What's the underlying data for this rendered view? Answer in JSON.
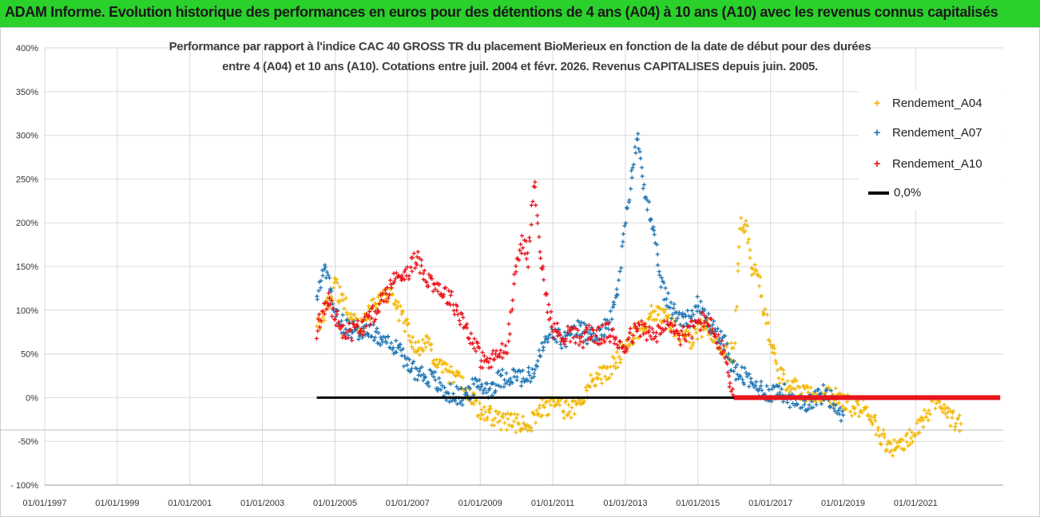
{
  "banner": {
    "title": "ADAM Informe. Evolution historique des performances en euros pour des détentions de 4 ans (A04) à 10 ans (A10) avec les revenus connus capitalisés"
  },
  "colors": {
    "banner_bg": "#2bd12b",
    "A04": "#f2b705",
    "A07": "#1f77b4",
    "A10": "#e8141c",
    "zero": "#000000",
    "grid": "#d9d9d9"
  },
  "chart_data": {
    "type": "scatter",
    "title_line1": "Performance par rapport à l'indice CAC 40 GROSS TR  du placement BioMerieux en fonction de la date de début pour des durées",
    "title_line2": "entre 4 (A04) et 10 ans (A10). Cotations entre juil. 2004 et févr. 2026. Revenus CAPITALISES depuis juin. 2005.",
    "xlabel": "",
    "ylabel": "",
    "x_ticks": [
      "01/01/1997",
      "01/01/1999",
      "01/01/2001",
      "01/01/2003",
      "01/01/2005",
      "01/01/2007",
      "01/01/2009",
      "01/01/2011",
      "01/01/2013",
      "01/01/2015",
      "01/01/2017",
      "01/01/2019",
      "01/01/2021"
    ],
    "xlim": [
      "1997-01-01",
      "2023-06-01"
    ],
    "y_ticks": [
      "- 100%",
      "-50%",
      "0%",
      "50%",
      "100%",
      "150%",
      "200%",
      "250%",
      "300%",
      "350%",
      "400%"
    ],
    "ylim": [
      -100,
      400
    ],
    "grid": true,
    "legend_position": "top-right",
    "series": [
      {
        "name": "Rendement_A04",
        "marker": "+",
        "points": [
          [
            "2004-07-01",
            80
          ],
          [
            "2004-09-01",
            95
          ],
          [
            "2004-11-01",
            110
          ],
          [
            "2005-01-01",
            130
          ],
          [
            "2005-03-01",
            115
          ],
          [
            "2005-06-01",
            95
          ],
          [
            "2005-09-01",
            80
          ],
          [
            "2006-01-01",
            100
          ],
          [
            "2006-04-01",
            115
          ],
          [
            "2006-07-01",
            120
          ],
          [
            "2006-10-01",
            100
          ],
          [
            "2007-01-01",
            80
          ],
          [
            "2007-04-01",
            55
          ],
          [
            "2007-07-01",
            65
          ],
          [
            "2007-10-01",
            45
          ],
          [
            "2008-01-01",
            30
          ],
          [
            "2008-04-01",
            25
          ],
          [
            "2008-07-01",
            15
          ],
          [
            "2008-10-01",
            0
          ],
          [
            "2009-01-01",
            -15
          ],
          [
            "2009-04-01",
            -20
          ],
          [
            "2009-07-01",
            -25
          ],
          [
            "2009-10-01",
            -28
          ],
          [
            "2010-01-01",
            -30
          ],
          [
            "2010-04-01",
            -32
          ],
          [
            "2010-07-01",
            -25
          ],
          [
            "2010-10-01",
            -10
          ],
          [
            "2011-01-01",
            -10
          ],
          [
            "2011-04-01",
            -12
          ],
          [
            "2011-07-01",
            -15
          ],
          [
            "2011-10-01",
            -5
          ],
          [
            "2012-01-01",
            15
          ],
          [
            "2012-04-01",
            25
          ],
          [
            "2012-07-01",
            30
          ],
          [
            "2012-10-01",
            40
          ],
          [
            "2013-01-01",
            55
          ],
          [
            "2013-04-01",
            70
          ],
          [
            "2013-07-01",
            85
          ],
          [
            "2013-10-01",
            100
          ],
          [
            "2014-01-01",
            95
          ],
          [
            "2014-04-01",
            85
          ],
          [
            "2014-07-01",
            75
          ],
          [
            "2014-10-01",
            65
          ],
          [
            "2015-01-01",
            75
          ],
          [
            "2015-04-01",
            85
          ],
          [
            "2015-07-01",
            70
          ],
          [
            "2015-10-01",
            55
          ],
          [
            "2016-01-01",
            50
          ],
          [
            "2016-03-01",
            200
          ],
          [
            "2016-05-01",
            195
          ],
          [
            "2016-07-01",
            150
          ],
          [
            "2016-09-01",
            140
          ],
          [
            "2016-11-01",
            95
          ],
          [
            "2017-01-01",
            70
          ],
          [
            "2017-04-01",
            25
          ],
          [
            "2017-07-01",
            15
          ],
          [
            "2017-10-01",
            10
          ],
          [
            "2018-01-01",
            5
          ],
          [
            "2018-04-01",
            5
          ],
          [
            "2018-07-01",
            0
          ],
          [
            "2018-10-01",
            2
          ],
          [
            "2019-01-01",
            -5
          ],
          [
            "2019-04-01",
            -10
          ],
          [
            "2019-07-01",
            -12
          ],
          [
            "2019-10-01",
            -15
          ],
          [
            "2020-01-01",
            -40
          ],
          [
            "2020-04-01",
            -58
          ],
          [
            "2020-07-01",
            -55
          ],
          [
            "2020-10-01",
            -50
          ],
          [
            "2021-01-01",
            -40
          ],
          [
            "2021-04-01",
            -25
          ],
          [
            "2021-07-01",
            0
          ],
          [
            "2021-10-01",
            -10
          ],
          [
            "2022-01-01",
            -25
          ],
          [
            "2022-04-01",
            -30
          ]
        ]
      },
      {
        "name": "Rendement_A07",
        "marker": "+",
        "points": [
          [
            "2004-07-01",
            110
          ],
          [
            "2004-09-01",
            150
          ],
          [
            "2004-11-01",
            130
          ],
          [
            "2005-01-01",
            100
          ],
          [
            "2005-03-01",
            85
          ],
          [
            "2005-06-01",
            80
          ],
          [
            "2005-09-01",
            75
          ],
          [
            "2006-01-01",
            75
          ],
          [
            "2006-04-01",
            70
          ],
          [
            "2006-07-01",
            65
          ],
          [
            "2006-10-01",
            55
          ],
          [
            "2007-01-01",
            40
          ],
          [
            "2007-04-01",
            30
          ],
          [
            "2007-07-01",
            25
          ],
          [
            "2007-10-01",
            20
          ],
          [
            "2008-01-01",
            5
          ],
          [
            "2008-04-01",
            5
          ],
          [
            "2008-07-01",
            0
          ],
          [
            "2008-10-01",
            10
          ],
          [
            "2009-01-01",
            15
          ],
          [
            "2009-04-01",
            10
          ],
          [
            "2009-07-01",
            20
          ],
          [
            "2009-10-01",
            25
          ],
          [
            "2010-01-01",
            25
          ],
          [
            "2010-04-01",
            20
          ],
          [
            "2010-07-01",
            30
          ],
          [
            "2010-10-01",
            60
          ],
          [
            "2011-01-01",
            75
          ],
          [
            "2011-04-01",
            65
          ],
          [
            "2011-07-01",
            70
          ],
          [
            "2011-10-01",
            80
          ],
          [
            "2012-01-01",
            70
          ],
          [
            "2012-04-01",
            75
          ],
          [
            "2012-07-01",
            80
          ],
          [
            "2012-10-01",
            110
          ],
          [
            "2013-01-01",
            200
          ],
          [
            "2013-03-01",
            250
          ],
          [
            "2013-05-01",
            300
          ],
          [
            "2013-07-01",
            250
          ],
          [
            "2013-09-01",
            210
          ],
          [
            "2013-11-01",
            170
          ],
          [
            "2014-01-01",
            130
          ],
          [
            "2014-04-01",
            100
          ],
          [
            "2014-07-01",
            95
          ],
          [
            "2014-10-01",
            90
          ],
          [
            "2015-01-01",
            105
          ],
          [
            "2015-04-01",
            90
          ],
          [
            "2015-07-01",
            75
          ],
          [
            "2015-10-01",
            60
          ],
          [
            "2016-01-01",
            30
          ],
          [
            "2016-04-01",
            25
          ],
          [
            "2016-07-01",
            15
          ],
          [
            "2016-10-01",
            10
          ],
          [
            "2017-01-01",
            5
          ],
          [
            "2017-04-01",
            10
          ],
          [
            "2017-07-01",
            0
          ],
          [
            "2017-10-01",
            -10
          ],
          [
            "2018-01-01",
            -5
          ],
          [
            "2018-04-01",
            0
          ],
          [
            "2018-07-01",
            5
          ],
          [
            "2018-10-01",
            -5
          ],
          [
            "2019-01-01",
            -20
          ]
        ]
      },
      {
        "name": "Rendement_A10",
        "marker": "+",
        "points": [
          [
            "2004-07-01",
            75
          ],
          [
            "2004-09-01",
            100
          ],
          [
            "2004-11-01",
            110
          ],
          [
            "2005-01-01",
            95
          ],
          [
            "2005-03-01",
            80
          ],
          [
            "2005-06-01",
            75
          ],
          [
            "2005-09-01",
            80
          ],
          [
            "2006-01-01",
            90
          ],
          [
            "2006-04-01",
            110
          ],
          [
            "2006-07-01",
            125
          ],
          [
            "2006-10-01",
            140
          ],
          [
            "2007-01-01",
            145
          ],
          [
            "2007-04-01",
            160
          ],
          [
            "2007-07-01",
            140
          ],
          [
            "2007-10-01",
            130
          ],
          [
            "2008-01-01",
            120
          ],
          [
            "2008-04-01",
            110
          ],
          [
            "2008-07-01",
            90
          ],
          [
            "2008-10-01",
            70
          ],
          [
            "2009-01-01",
            45
          ],
          [
            "2009-04-01",
            40
          ],
          [
            "2009-07-01",
            50
          ],
          [
            "2009-10-01",
            55
          ],
          [
            "2010-01-01",
            150
          ],
          [
            "2010-03-01",
            180
          ],
          [
            "2010-05-01",
            160
          ],
          [
            "2010-07-01",
            250
          ],
          [
            "2010-09-01",
            165
          ],
          [
            "2010-11-01",
            110
          ],
          [
            "2011-01-01",
            80
          ],
          [
            "2011-04-01",
            70
          ],
          [
            "2011-07-01",
            75
          ],
          [
            "2011-10-01",
            65
          ],
          [
            "2012-01-01",
            75
          ],
          [
            "2012-04-01",
            70
          ],
          [
            "2012-07-01",
            75
          ],
          [
            "2012-10-01",
            65
          ],
          [
            "2013-01-01",
            60
          ],
          [
            "2013-04-01",
            75
          ],
          [
            "2013-07-01",
            80
          ],
          [
            "2013-10-01",
            70
          ],
          [
            "2014-01-01",
            75
          ],
          [
            "2014-04-01",
            85
          ],
          [
            "2014-07-01",
            70
          ],
          [
            "2014-10-01",
            75
          ],
          [
            "2015-01-01",
            85
          ],
          [
            "2015-04-01",
            90
          ],
          [
            "2015-07-01",
            70
          ],
          [
            "2015-10-01",
            45
          ],
          [
            "2016-01-01",
            0
          ]
        ]
      },
      {
        "name": "0,0%",
        "marker": "line",
        "points": [
          [
            "2004-07-01",
            0
          ],
          [
            "2016-01-01",
            0
          ]
        ]
      }
    ],
    "A10_zero_band": [
      [
        "2016-01-01",
        0
      ],
      [
        "2023-05-01",
        0
      ]
    ]
  }
}
